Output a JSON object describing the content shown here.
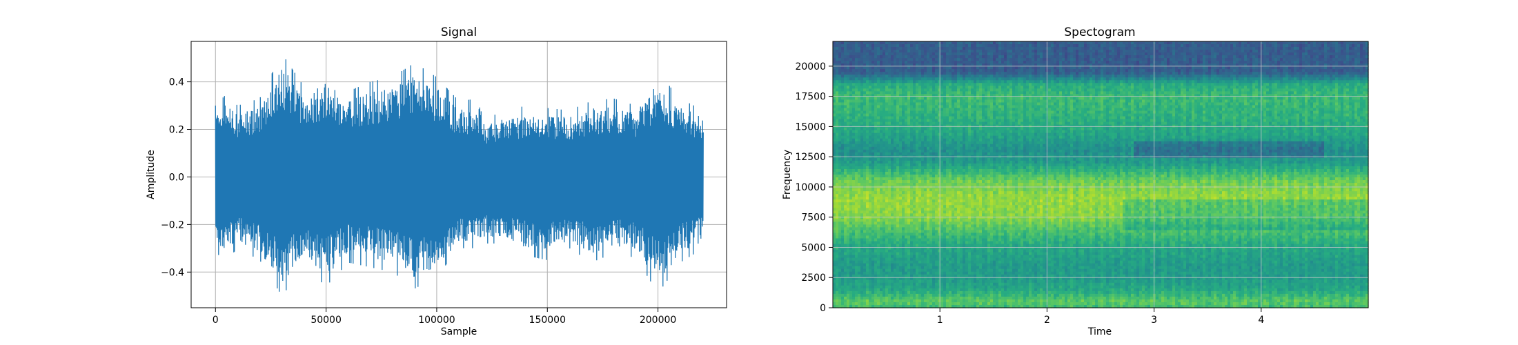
{
  "chart_data": [
    {
      "type": "line",
      "title": "Signal",
      "xlabel": "Sample",
      "ylabel": "Amplitude",
      "xlim": [
        -11000,
        231000
      ],
      "ylim": [
        -0.55,
        0.57
      ],
      "grid": true,
      "line_color": "#1f77b4",
      "xticks": [
        {
          "value": 0,
          "label": "0"
        },
        {
          "value": 50000,
          "label": "50000"
        },
        {
          "value": 100000,
          "label": "100000"
        },
        {
          "value": 150000,
          "label": "150000"
        },
        {
          "value": 200000,
          "label": "200000"
        }
      ],
      "yticks": [
        {
          "value": -0.4,
          "label": "−0.4"
        },
        {
          "value": -0.2,
          "label": "−0.2"
        },
        {
          "value": 0.0,
          "label": "0.0"
        },
        {
          "value": 0.2,
          "label": "0.2"
        },
        {
          "value": 0.4,
          "label": "0.4"
        }
      ],
      "series": [
        {
          "x_range": [
            0,
            220500
          ],
          "envelope_x": [
            0,
            5000,
            10000,
            20000,
            30000,
            40000,
            50000,
            60000,
            70000,
            80000,
            90000,
            100000,
            110000,
            120000,
            121000,
            130000,
            140000,
            150000,
            160000,
            170000,
            180000,
            190000,
            200000,
            210000,
            220500
          ],
          "envelope_min": [
            -0.32,
            -0.35,
            -0.3,
            -0.35,
            -0.5,
            -0.38,
            -0.46,
            -0.36,
            -0.38,
            -0.4,
            -0.47,
            -0.42,
            -0.3,
            -0.3,
            -0.28,
            -0.28,
            -0.33,
            -0.35,
            -0.3,
            -0.36,
            -0.32,
            -0.34,
            -0.49,
            -0.36,
            -0.3
          ],
          "envelope_max": [
            0.3,
            0.35,
            0.3,
            0.33,
            0.52,
            0.38,
            0.44,
            0.36,
            0.4,
            0.42,
            0.48,
            0.42,
            0.32,
            0.33,
            0.25,
            0.27,
            0.3,
            0.29,
            0.28,
            0.32,
            0.33,
            0.3,
            0.44,
            0.33,
            0.28
          ]
        }
      ]
    },
    {
      "type": "heatmap",
      "title": "Spectogram",
      "xlabel": "Time",
      "ylabel": "Frequency",
      "xlim": [
        0,
        5
      ],
      "ylim": [
        0,
        22050
      ],
      "grid": true,
      "colormap": "viridis",
      "xticks": [
        {
          "value": 1,
          "label": "1"
        },
        {
          "value": 2,
          "label": "2"
        },
        {
          "value": 3,
          "label": "3"
        },
        {
          "value": 4,
          "label": "4"
        }
      ],
      "yticks": [
        {
          "value": 0,
          "label": "0"
        },
        {
          "value": 2500,
          "label": "2500"
        },
        {
          "value": 5000,
          "label": "5000"
        },
        {
          "value": 7500,
          "label": "7500"
        },
        {
          "value": 10000,
          "label": "10000"
        },
        {
          "value": 12500,
          "label": "12500"
        },
        {
          "value": 15000,
          "label": "15000"
        },
        {
          "value": 17500,
          "label": "17500"
        },
        {
          "value": 20000,
          "label": "20000"
        }
      ],
      "band_freqs": [
        0,
        500,
        1500,
        2500,
        3500,
        5000,
        6000,
        7500,
        9000,
        10500,
        12000,
        13000,
        14500,
        16000,
        17500,
        18500,
        19000,
        19500,
        22050
      ],
      "band_intensity": [
        0.68,
        0.75,
        0.6,
        0.55,
        0.55,
        0.6,
        0.68,
        0.82,
        0.85,
        0.78,
        0.55,
        0.5,
        0.6,
        0.65,
        0.68,
        0.62,
        0.45,
        0.3,
        0.3
      ]
    }
  ]
}
